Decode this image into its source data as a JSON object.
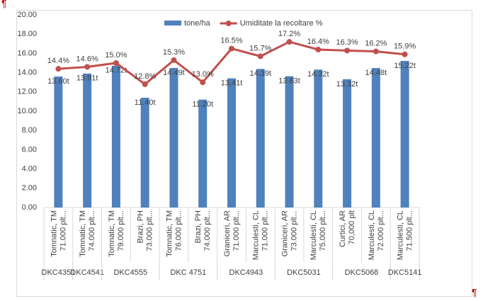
{
  "doc": {
    "pilcrow_top": "¶",
    "pilcrow_bottom": "¶"
  },
  "chart_data": {
    "type": "combo",
    "legend": "top",
    "groups": [
      {
        "name": "DKC4351",
        "categories": [
          [
            "Tomnatic, TM",
            "71.000 plt..."
          ]
        ]
      },
      {
        "name": "DKC4541",
        "categories": [
          [
            "Tomnatic, TM",
            "74.000 plt..."
          ]
        ]
      },
      {
        "name": "DKC4555",
        "categories": [
          [
            "Tomnatic, TM",
            "79.000 plt..."
          ],
          [
            "Brazi, PH",
            "73.000 plt..."
          ]
        ]
      },
      {
        "name": "DKC 4751",
        "categories": [
          [
            "Tomnatic, TM",
            "76.000 plt..."
          ],
          [
            "Brazi, PH",
            "74.000 plt..."
          ]
        ]
      },
      {
        "name": "DKC4943",
        "categories": [
          [
            "Graniceri, AR",
            "71.000 plt..."
          ],
          [
            "Marculesti, CL",
            "71.000 plt..."
          ]
        ]
      },
      {
        "name": "DKC5031",
        "categories": [
          [
            "Graniceri, AR",
            "73.000 plt..."
          ],
          [
            "Marculesti, CL",
            "75.000 plt..."
          ]
        ]
      },
      {
        "name": "DKC5068",
        "categories": [
          [
            "Curtici, AR",
            "70,000 plt"
          ],
          [
            "Marculesti, CL",
            "72.000 plt..."
          ]
        ]
      },
      {
        "name": "DKC5141",
        "categories": [
          [
            "Marculesti, CL",
            "71.500 plt..."
          ]
        ]
      }
    ],
    "series": [
      {
        "name": "tone/ha",
        "type": "bar",
        "color": "#4f81bd",
        "values": [
          13.6,
          13.91,
          14.72,
          11.4,
          14.49,
          11.2,
          13.41,
          14.39,
          13.63,
          14.32,
          13.32,
          14.48,
          15.22
        ],
        "value_labels": [
          "13.60t",
          "13.91t",
          "14.72t",
          "11.40t",
          "14.49t",
          "11.20t",
          "13.41t",
          "14.39t",
          "13.63t",
          "14.32t",
          "13.32t",
          "14.48t",
          "15.22t"
        ]
      },
      {
        "name": "Umiditate la recoltare %",
        "type": "line",
        "color": "#c0504d",
        "values": [
          14.4,
          14.6,
          15.0,
          12.8,
          15.3,
          13.0,
          16.5,
          15.7,
          17.2,
          16.4,
          16.3,
          16.2,
          15.9
        ],
        "value_labels": [
          "14.4%",
          "14.6%",
          "15.0%",
          "12.8%",
          "15.3%",
          "13.0%",
          "16.5%",
          "15.7%",
          "17.2%",
          "16.4%",
          "16.3%",
          "16.2%",
          "15.9%"
        ]
      }
    ],
    "ylim": [
      0,
      20
    ],
    "yticks": [
      {
        "value": 0,
        "label": "0.00"
      },
      {
        "value": 2,
        "label": "2.00"
      },
      {
        "value": 4,
        "label": "4.00"
      },
      {
        "value": 6,
        "label": "6.00"
      },
      {
        "value": 8,
        "label": "8.00"
      },
      {
        "value": 10,
        "label": "10.00"
      },
      {
        "value": 12,
        "label": "12.00"
      },
      {
        "value": 14,
        "label": "14.00"
      },
      {
        "value": 16,
        "label": "16.00"
      },
      {
        "value": 18,
        "label": "18.00"
      },
      {
        "value": 20,
        "label": "20.00"
      }
    ],
    "grid": false
  }
}
